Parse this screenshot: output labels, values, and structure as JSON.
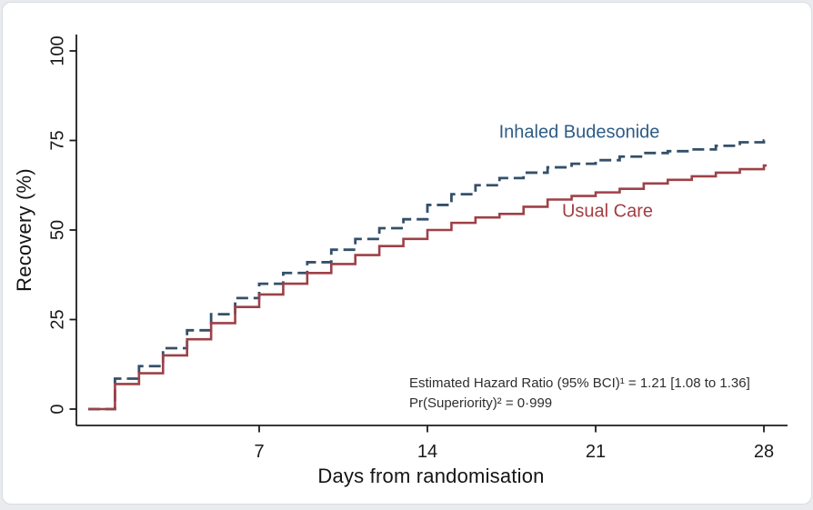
{
  "figure": {
    "colors": {
      "budesonide_line": "#34506A",
      "budesonide_text": "#2E5C85",
      "usual_care_line": "#9E4147",
      "usual_care_text": "#A33D44",
      "axis": "#1b1b1b",
      "tick_label": "#1b1b1b",
      "annotation_text": "#2e2e2e",
      "card_background": "#ffffff",
      "page_background": "#e9ebee"
    }
  },
  "chart_data": {
    "type": "line",
    "subtype": "step",
    "title": "",
    "xlabel": "Days from randomisation",
    "ylabel": "Recovery (%)",
    "xlim": [
      -0.6,
      29
    ],
    "ylim": [
      0,
      100
    ],
    "x_ticks": [
      7,
      14,
      21,
      28
    ],
    "y_ticks": [
      0,
      25,
      50,
      75,
      100
    ],
    "grid": false,
    "legend_position": "inline-labels-on-chart",
    "x": [
      0,
      1,
      2,
      3,
      4,
      5,
      6,
      7,
      8,
      9,
      10,
      11,
      12,
      13,
      14,
      15,
      16,
      17,
      18,
      19,
      20,
      21,
      22,
      23,
      24,
      25,
      26,
      27,
      28
    ],
    "series": [
      {
        "name": "Inhaled Budesonide",
        "style": "dashed",
        "color": "#34506A",
        "values": [
          0,
          8.5,
          12,
          17,
          22,
          26.5,
          31,
          35,
          38,
          41,
          44.5,
          47.5,
          50.5,
          53,
          57,
          60,
          62.5,
          64.5,
          66,
          67.5,
          68.5,
          69.5,
          70.5,
          71.5,
          72,
          72.5,
          73.5,
          74.5,
          75
        ]
      },
      {
        "name": "Usual Care",
        "style": "solid",
        "color": "#9E4147",
        "values": [
          0,
          7,
          10,
          15,
          19.5,
          24,
          28.5,
          32,
          35,
          38,
          40.5,
          43,
          45.5,
          47.5,
          50,
          52,
          53.5,
          54.5,
          56.5,
          58.5,
          59.5,
          60.5,
          61.5,
          63,
          64,
          65,
          66,
          67,
          68
        ]
      }
    ],
    "annotations": [
      "Estimated Hazard Ratio (95% BCI)¹ = 1.21 [1.08 to 1.36]",
      "Pr(Superiority)² = 0·999"
    ]
  }
}
